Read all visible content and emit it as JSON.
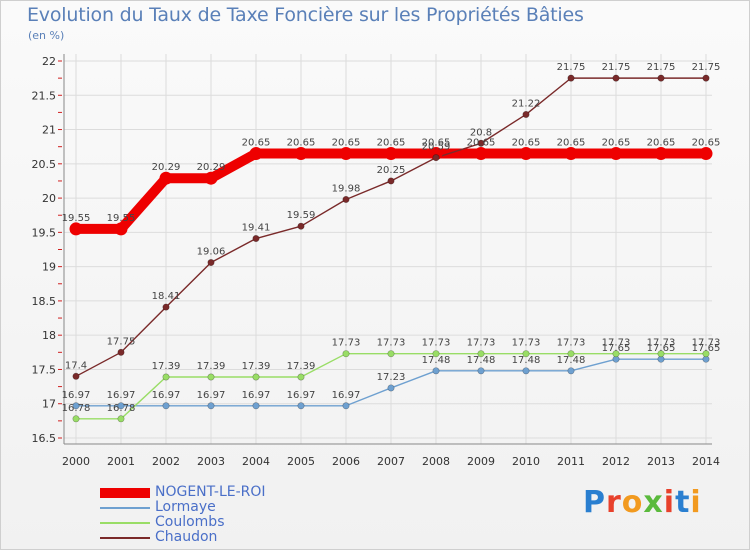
{
  "header": {
    "title": "Evolution du Taux de Taxe Foncière sur les Propriétés Bâties",
    "unit": "(en %)"
  },
  "logo": {
    "text": "Proxiti",
    "colors": [
      "#2a7fd0",
      "#e8412c",
      "#f29a1f",
      "#5aba3c",
      "#e8412c",
      "#2a7fd0",
      "#f29a1f"
    ]
  },
  "chart_data": {
    "type": "line",
    "title": "Evolution du Taux de Taxe Foncière sur les Propriétés Bâties",
    "ylabel": "(en %)",
    "xlabel": "",
    "ylim": [
      16.5,
      22
    ],
    "yticks": [
      16.5,
      17,
      17.5,
      18,
      18.5,
      19,
      19.5,
      20,
      20.5,
      21,
      21.5,
      22
    ],
    "ytick_labels": [
      "16.5",
      "17",
      "17.5",
      "18",
      "18.5",
      "19",
      "19.5",
      "20",
      "20.5",
      "21",
      "21.5",
      "22"
    ],
    "categories": [
      "2000",
      "2001",
      "2002",
      "2003",
      "2004",
      "2005",
      "2006",
      "2007",
      "2008",
      "2009",
      "2010",
      "2011",
      "2012",
      "2013",
      "2014"
    ],
    "grid": true,
    "legend_position": "bottom-left",
    "series": [
      {
        "name": "NOGENT-LE-ROI",
        "color": "#ee0000",
        "values": [
          19.55,
          19.55,
          20.29,
          20.29,
          20.65,
          20.65,
          20.65,
          20.65,
          20.65,
          20.65,
          20.65,
          20.65,
          20.65,
          20.65,
          20.65
        ],
        "labels": [
          "19.55",
          "19.55",
          "20.29",
          "20.29",
          "20.65",
          "20.65",
          "20.65",
          "20.65",
          "20.65",
          "20.65",
          "20.65",
          "20.65",
          "20.65",
          "20.65",
          "20.65"
        ]
      },
      {
        "name": "Lormaye",
        "color": "#6ea0d0",
        "values": [
          16.97,
          16.97,
          16.97,
          16.97,
          16.97,
          16.97,
          16.97,
          17.23,
          17.48,
          17.48,
          17.48,
          17.48,
          17.65,
          17.65,
          17.65
        ],
        "labels": [
          "16.97",
          "16.97",
          "16.97",
          "16.97",
          "16.97",
          "16.97",
          "16.97",
          "17.23",
          "17.48",
          "17.48",
          "17.48",
          "17.48",
          "17.65",
          "17.65",
          "17.65"
        ]
      },
      {
        "name": "Coulombs",
        "color": "#99dd66",
        "values": [
          16.78,
          16.78,
          17.39,
          17.39,
          17.39,
          17.39,
          17.73,
          17.73,
          17.73,
          17.73,
          17.73,
          17.73,
          17.73,
          17.73,
          17.73
        ],
        "labels": [
          "16.78",
          "16.78",
          "17.39",
          "17.39",
          "17.39",
          "17.39",
          "17.73",
          "17.73",
          "17.73",
          "17.73",
          "17.73",
          "17.73",
          "17.73",
          "17.73",
          "17.73"
        ]
      },
      {
        "name": "Chaudon",
        "color": "#7a2a2a",
        "values": [
          17.4,
          17.75,
          18.41,
          19.06,
          19.41,
          19.59,
          19.98,
          20.25,
          20.59,
          20.8,
          21.22,
          21.75,
          21.75,
          21.75,
          21.75
        ],
        "labels": [
          "17.4",
          "17.75",
          "18.41",
          "19.06",
          "19.41",
          "19.59",
          "19.98",
          "20.25",
          "20.59",
          "20.8",
          "21.22",
          "21.75",
          "21.75",
          "21.75",
          "21.75"
        ]
      }
    ]
  }
}
